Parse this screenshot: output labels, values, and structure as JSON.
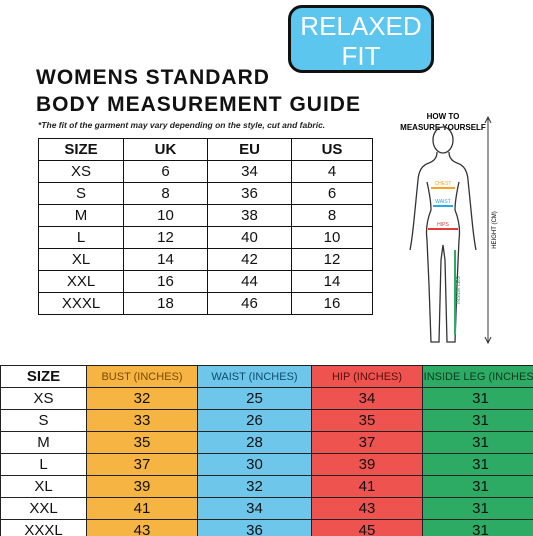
{
  "badge": {
    "lines": [
      "RELAXED",
      "FIT"
    ]
  },
  "header": {
    "title_lines": [
      "WOMENS STANDARD",
      "BODY MEASUREMENT GUIDE"
    ],
    "note": "*The fit of the garment may vary depending on the style, cut and fabric."
  },
  "table1": {
    "header": [
      "SIZE",
      "UK",
      "EU",
      "US"
    ],
    "rows": [
      [
        "XS",
        6,
        34,
        4
      ],
      [
        "S",
        8,
        36,
        6
      ],
      [
        "M",
        10,
        38,
        8
      ],
      [
        "L",
        12,
        40,
        10
      ],
      [
        "XL",
        14,
        42,
        12
      ],
      [
        "XXL",
        16,
        44,
        14
      ],
      [
        "XXXL",
        18,
        46,
        16
      ]
    ]
  },
  "figure": {
    "title_lines": [
      "HOW TO",
      "MEASURE YOURSELF"
    ],
    "labels": {
      "chest": "CHEST",
      "waist": "WAIST",
      "hips": "HIPS",
      "inside_leg": "INSIDE LEG",
      "height": "HEIGHT (CM)"
    }
  },
  "table2": {
    "header": [
      "SIZE",
      "BUST (INCHES)",
      "WAIST (INCHES)",
      "HIP (INCHES)",
      "INSIDE LEG (INCHES)"
    ],
    "rows": [
      [
        "XS",
        32,
        25,
        34,
        31
      ],
      [
        "S",
        33,
        26,
        35,
        31
      ],
      [
        "M",
        35,
        28,
        37,
        31
      ],
      [
        "L",
        37,
        30,
        39,
        31
      ],
      [
        "XL",
        39,
        32,
        41,
        31
      ],
      [
        "XXL",
        41,
        34,
        43,
        31
      ],
      [
        "XXXL",
        43,
        36,
        45,
        31
      ]
    ]
  }
}
